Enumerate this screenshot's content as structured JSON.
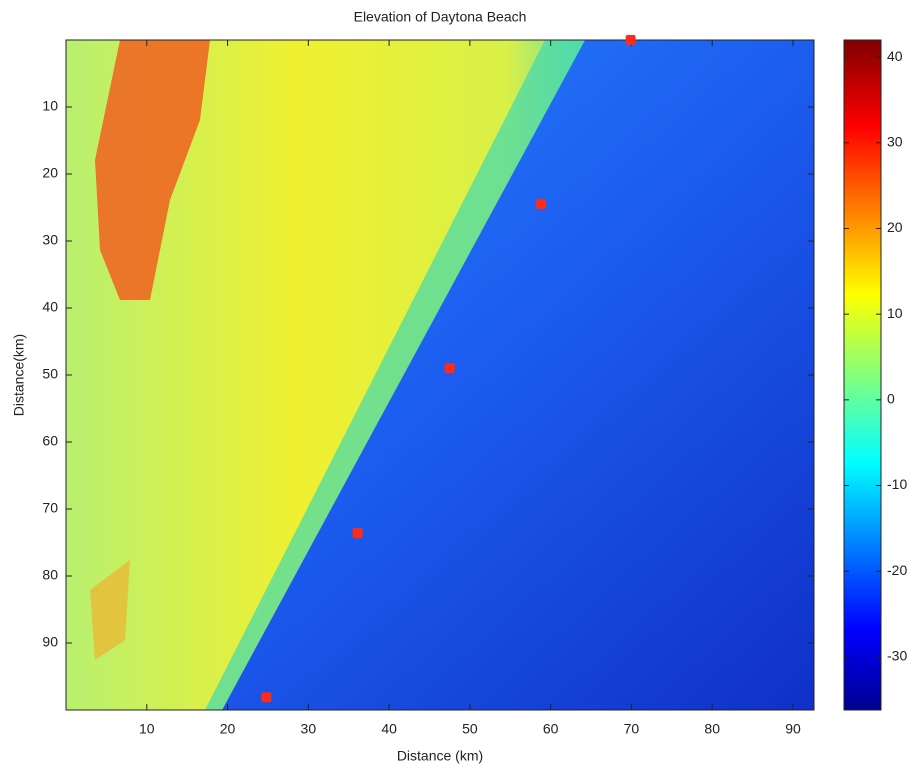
{
  "chart_data": {
    "type": "scatter",
    "title": "Elevation of Daytona Beach",
    "x_label": "Distance (km)",
    "y_label": "Distance(km)",
    "x": [
      69.9,
      58.8,
      47.5,
      36.1,
      24.8
    ],
    "series": [
      {
        "values": [
          0,
          24.5,
          49.0,
          73.6,
          98.1
        ],
        "color": "#ff2a1a"
      }
    ],
    "xlim": [
      0,
      92.6
    ],
    "xticks": [
      10,
      20,
      30,
      40,
      50,
      60,
      70,
      80,
      90
    ],
    "ylim": [
      0,
      100
    ],
    "yticks": [
      10,
      20,
      30,
      40,
      50,
      60,
      70,
      80,
      90
    ],
    "y_reversed": true,
    "colormap": "jet",
    "clim": [
      -36.2,
      42
    ],
    "cticks": [
      -30,
      -20,
      -10,
      0,
      10,
      20,
      30,
      40
    ],
    "grid": false
  }
}
